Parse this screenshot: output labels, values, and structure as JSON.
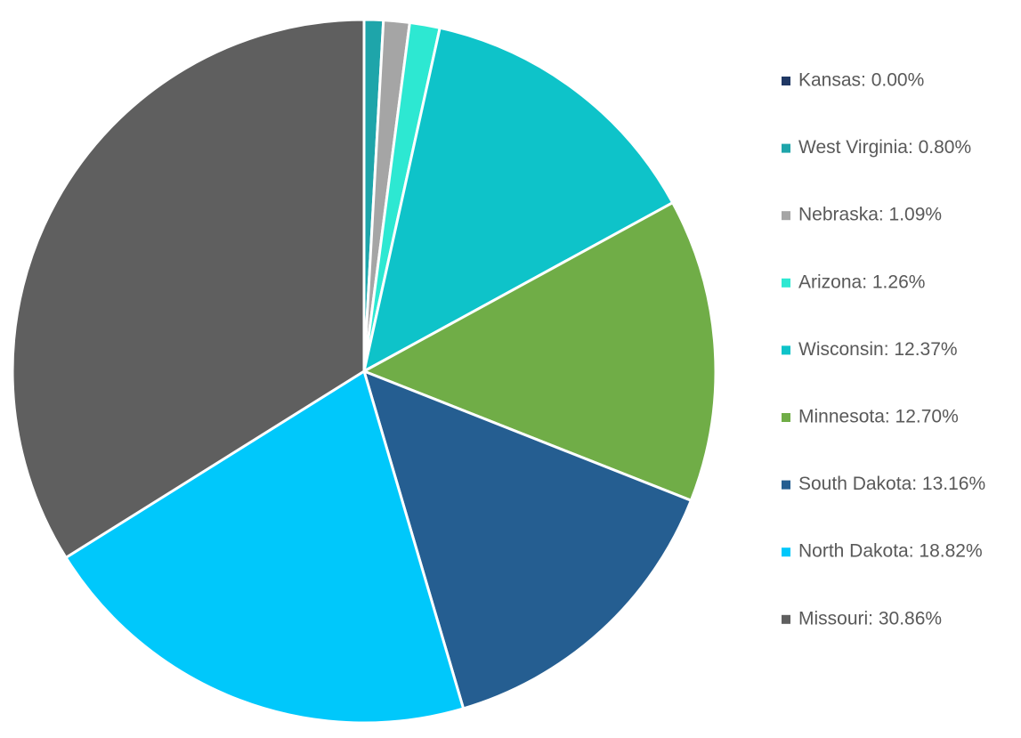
{
  "chart_data": {
    "type": "pie",
    "categories": [
      "Kansas: 0.00%",
      "West Virginia: 0.80%",
      "Nebraska: 1.09%",
      "Arizona: 1.26%",
      "Wisconsin: 12.37%",
      "Minnesota: 12.70%",
      "South Dakota: 13.16%",
      "North Dakota: 18.82%",
      "Missouri: 30.86%"
    ],
    "values": [
      0,
      0.8,
      1.09,
      1.26,
      12.37,
      12.7,
      13.16,
      18.82,
      30.86
    ],
    "colors": [
      "#203864",
      "#1ea5aa",
      "#a5a5a5",
      "#2de8d2",
      "#0ec3c9",
      "#70ad47",
      "#255e91",
      "#00c8fb",
      "#5f5f5f"
    ],
    "legend": "right"
  }
}
